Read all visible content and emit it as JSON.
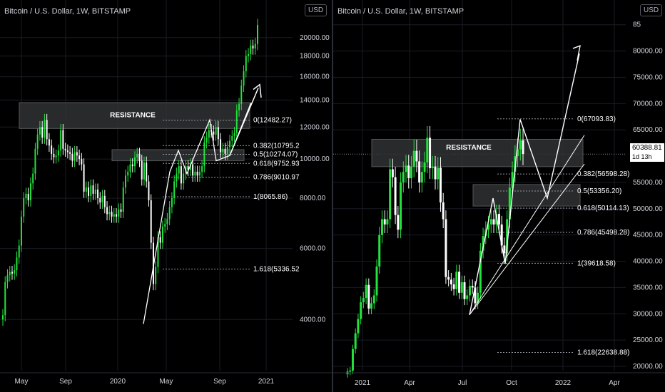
{
  "colors": {
    "background": "#000000",
    "bull": "#22e33c",
    "bear": "#ffffff",
    "axis_text": "#d1d4dc",
    "grid": "#1a1c24",
    "fib_line": "#9598a1",
    "zone": "#2f3134"
  },
  "left": {
    "title": "Bitcoin / U.S. Dollar, 1W, BITSTAMP",
    "currency": "USD",
    "resistance_label": "RESISTANCE",
    "x_ticks": [
      "May",
      "Sep",
      "2020",
      "May",
      "Sep",
      "2021"
    ],
    "y_ticks": [
      "20000.00",
      "18000.00",
      "16000.00",
      "14000.00",
      "12000.00",
      "10000.00",
      "8000.00",
      "6000.00",
      "4000.00"
    ],
    "fib_labels": [
      "0(12482.27)",
      "0.382(10795.2",
      "0.5(10274.07)",
      "0.618(9752.93",
      "0.786(9010.97",
      "1(8065.86)",
      "1.618(5336.52"
    ]
  },
  "right": {
    "title": "Bitcoin / U.S. Dollar, 1W, BITSTAMP",
    "currency": "USD",
    "resistance_label": "RESISTANCE",
    "x_ticks": [
      "2021",
      "Apr",
      "Jul",
      "Oct",
      "2022",
      "Apr"
    ],
    "y_ticks": [
      "85",
      "80000.00",
      "75000.00",
      "70000.00",
      "65000.00",
      "55000.00",
      "50000.00",
      "45000.00",
      "40000.00",
      "35000.00",
      "30000.00",
      "25000.00",
      "20000.00"
    ],
    "fib_labels": [
      "0(67093.83)",
      "0.382(56598.28)",
      "0.5(53356.20)",
      "0.618(50114.13)",
      "0.786(45498.28)",
      "1(39618.58)",
      "1.618(22638.88)"
    ],
    "last_price": "60388.81",
    "countdown": "1d 13h"
  },
  "chart_data": [
    {
      "type": "candlestick",
      "title": "Bitcoin / U.S. Dollar, 1W, BITSTAMP",
      "ylim": [
        3000,
        21500
      ],
      "y_scale": "log",
      "x_tick_labels": [
        "May",
        "Sep",
        "2020",
        "May",
        "Sep",
        "2021"
      ],
      "resistance_zones": [
        {
          "label": "RESISTANCE",
          "from": 11900,
          "to": 13800
        },
        {
          "from": 9900,
          "to": 10550
        }
      ],
      "fibonacci": [
        {
          "level": 0,
          "price": 12482.27
        },
        {
          "level": 0.382,
          "price": 10795.2
        },
        {
          "level": 0.5,
          "price": 10274.07
        },
        {
          "level": 0.618,
          "price": 9752.93
        },
        {
          "level": 0.786,
          "price": 9010.97
        },
        {
          "level": 1,
          "price": 8065.86
        },
        {
          "level": 1.618,
          "price": 5336.52
        }
      ],
      "closes": [
        4100,
        4950,
        5150,
        5250,
        5200,
        5300,
        5700,
        6100,
        7200,
        8000,
        8200,
        7900,
        8700,
        9200,
        10600,
        11500,
        12000,
        11300,
        12500,
        11200,
        10800,
        10300,
        10100,
        10200,
        10500,
        11800,
        10600,
        10500,
        10400,
        10300,
        9900,
        10400,
        10200,
        10000,
        9700,
        8300,
        8500,
        8100,
        8600,
        8200,
        8400,
        8000,
        7800,
        8100,
        7600,
        7300,
        7400,
        7200,
        7300,
        7200,
        7500,
        7400,
        8500,
        9100,
        9300,
        9700,
        9600,
        10100,
        10300,
        9900,
        8900,
        9800,
        8800,
        7900,
        6200,
        4900,
        5400,
        6400,
        6200,
        6800,
        6900,
        7100,
        7600,
        8000,
        8800,
        9200,
        9600,
        8700,
        9200,
        9600,
        9400,
        9700,
        9100,
        9300,
        9100,
        9300,
        9600,
        11000,
        11300,
        11800,
        11700,
        11500,
        12000,
        11200,
        10400,
        10600,
        10300,
        10700,
        11100,
        11400,
        11600,
        13200,
        13700,
        15200,
        16500,
        18000,
        18200,
        19100,
        18800,
        19300,
        21500
      ],
      "annotation": "arrow pointing up toward ~15000 from the rising 2020 move"
    },
    {
      "type": "candlestick",
      "title": "Bitcoin / U.S. Dollar, 1W, BITSTAMP",
      "ylim": [
        20000,
        87000
      ],
      "y_scale": "linear",
      "x_tick_labels": [
        "2021",
        "Apr",
        "Jul",
        "Oct",
        "2022",
        "Apr"
      ],
      "resistance_zones": [
        {
          "label": "RESISTANCE",
          "from": 58000,
          "to": 63200
        },
        {
          "from": 50500,
          "to": 54600
        }
      ],
      "fibonacci": [
        {
          "level": 0,
          "price": 67093.83
        },
        {
          "level": 0.382,
          "price": 56598.28
        },
        {
          "level": 0.5,
          "price": 53356.2
        },
        {
          "level": 0.618,
          "price": 50114.13
        },
        {
          "level": 0.786,
          "price": 45498.28
        },
        {
          "level": 1,
          "price": 39618.58
        },
        {
          "level": 1.618,
          "price": 22638.88
        }
      ],
      "closes": [
        19000,
        19200,
        23300,
        26300,
        29000,
        32200,
        33000,
        35500,
        31000,
        32000,
        33500,
        39000,
        45000,
        48000,
        47000,
        48000,
        57500,
        56000,
        48800,
        46000,
        55000,
        57000,
        58200,
        55800,
        58000,
        61000,
        59000,
        55000,
        57000,
        58800,
        63500,
        57700,
        58000,
        55600,
        57800,
        51200,
        48000,
        37000,
        36500,
        35600,
        34700,
        38000,
        34000,
        36000,
        32800,
        33500,
        35300,
        35000,
        32000,
        34000,
        42000,
        44800,
        46000,
        47000,
        48000,
        47000,
        49000,
        47000,
        43000,
        41500,
        48000,
        54000,
        57000,
        60000,
        61300,
        63000,
        60400
      ],
      "last_price": 60388.81,
      "projection_path": [
        {
          "week": 66,
          "price": 67093
        },
        {
          "week": 73,
          "price": 52000
        },
        {
          "week": 83,
          "price": 80000
        }
      ]
    }
  ]
}
